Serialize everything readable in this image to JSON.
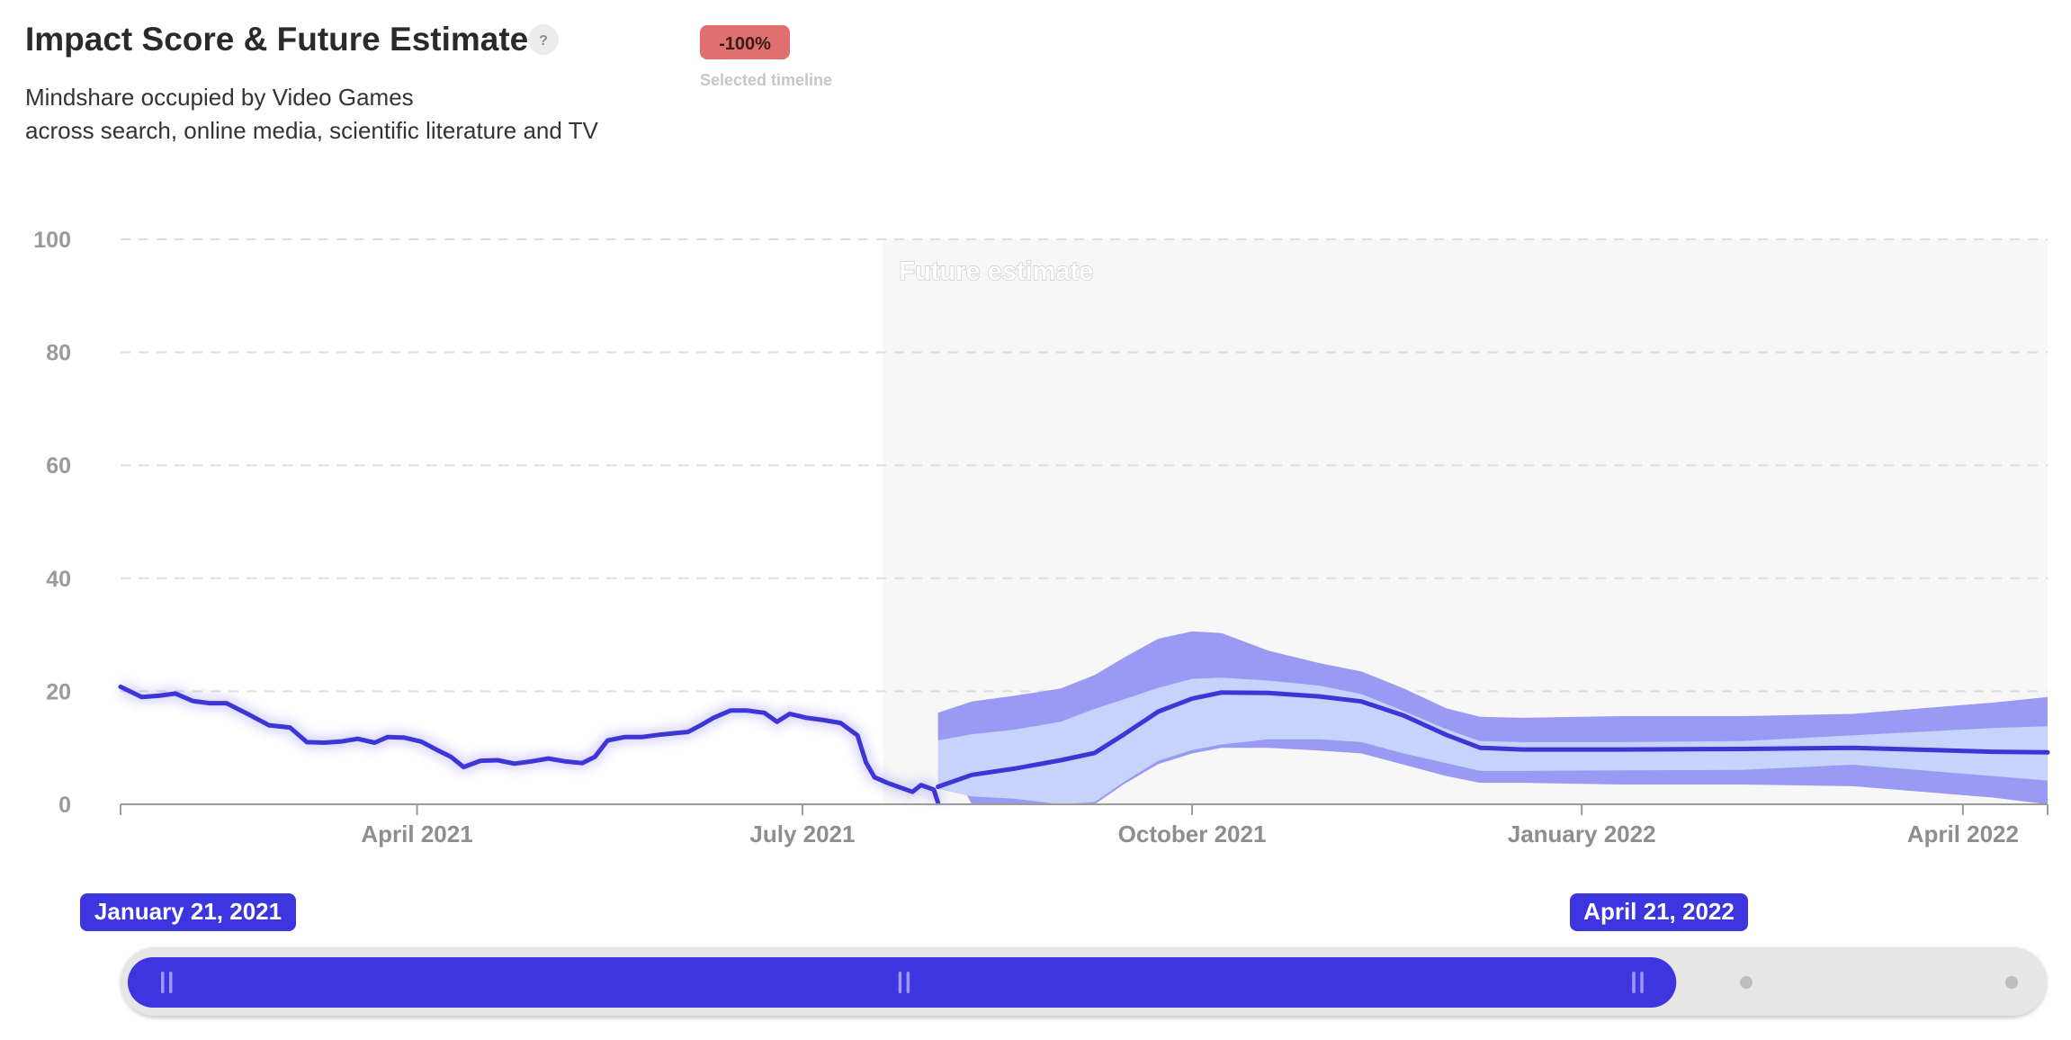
{
  "header": {
    "title": "Impact Score & Future Estimate",
    "help_icon": "?",
    "subtitle_line1": "Mindshare occupied by Video Games",
    "subtitle_line2": "across search, online media, scientific literature and TV",
    "change_badge": "-100%",
    "change_caption": "Selected timeline",
    "badge_color": "#e07070"
  },
  "colors": {
    "line": "#3d35d8",
    "band_outer": "#9a9af4",
    "band_inner": "#c6d4fb",
    "future_bg": "#f7f7f7",
    "grid": "#dddddd",
    "slider_fill": "#3d35e0",
    "slider_track": "#e6e6e6"
  },
  "chart_data": {
    "type": "line",
    "title": "Impact Score & Future Estimate",
    "ylim": [
      0,
      100
    ],
    "yticks": [
      0,
      20,
      40,
      60,
      80,
      100
    ],
    "x_start": "2021-01-21",
    "x_end": "2022-04-21",
    "xticks": [
      {
        "label": "April 2021",
        "date": "2021-04-01"
      },
      {
        "label": "July 2021",
        "date": "2021-07-01"
      },
      {
        "label": "October 2021",
        "date": "2021-10-01"
      },
      {
        "label": "January 2022",
        "date": "2022-01-01"
      },
      {
        "label": "April 2022",
        "date": "2022-04-01"
      }
    ],
    "grid": true,
    "future_start": "2021-07-20",
    "future_label": "Future estimate",
    "series": [
      {
        "kind": "history",
        "points": [
          [
            "2021-01-21",
            20.8
          ],
          [
            "2021-01-26",
            19.0
          ],
          [
            "2021-01-30",
            19.2
          ],
          [
            "2021-02-03",
            19.6
          ],
          [
            "2021-02-07",
            18.3
          ],
          [
            "2021-02-11",
            17.9
          ],
          [
            "2021-02-15",
            17.9
          ],
          [
            "2021-02-20",
            16.0
          ],
          [
            "2021-02-25",
            14.0
          ],
          [
            "2021-03-02",
            13.6
          ],
          [
            "2021-03-06",
            11.0
          ],
          [
            "2021-03-10",
            10.9
          ],
          [
            "2021-03-14",
            11.1
          ],
          [
            "2021-03-18",
            11.6
          ],
          [
            "2021-03-22",
            10.9
          ],
          [
            "2021-03-25",
            11.9
          ],
          [
            "2021-03-29",
            11.8
          ],
          [
            "2021-04-02",
            11.1
          ],
          [
            "2021-04-06",
            9.5
          ],
          [
            "2021-04-09",
            8.4
          ],
          [
            "2021-04-12",
            6.6
          ],
          [
            "2021-04-16",
            7.7
          ],
          [
            "2021-04-20",
            7.8
          ],
          [
            "2021-04-24",
            7.2
          ],
          [
            "2021-04-28",
            7.6
          ],
          [
            "2021-05-02",
            8.1
          ],
          [
            "2021-05-06",
            7.6
          ],
          [
            "2021-05-10",
            7.3
          ],
          [
            "2021-05-13",
            8.4
          ],
          [
            "2021-05-16",
            11.3
          ],
          [
            "2021-05-20",
            11.9
          ],
          [
            "2021-05-24",
            11.9
          ],
          [
            "2021-05-28",
            12.3
          ],
          [
            "2021-06-01",
            12.6
          ],
          [
            "2021-06-04",
            12.8
          ],
          [
            "2021-06-07",
            14.0
          ],
          [
            "2021-06-10",
            15.3
          ],
          [
            "2021-06-14",
            16.6
          ],
          [
            "2021-06-18",
            16.6
          ],
          [
            "2021-06-22",
            16.2
          ],
          [
            "2021-06-25",
            14.6
          ],
          [
            "2021-06-28",
            16.0
          ],
          [
            "2021-07-02",
            15.3
          ],
          [
            "2021-07-06",
            14.9
          ],
          [
            "2021-07-10",
            14.4
          ],
          [
            "2021-07-14",
            12.2
          ],
          [
            "2021-07-16",
            7.4
          ],
          [
            "2021-07-18",
            4.8
          ],
          [
            "2021-07-21",
            3.8
          ],
          [
            "2021-07-24",
            3.0
          ],
          [
            "2021-07-27",
            2.2
          ],
          [
            "2021-07-29",
            3.4
          ],
          [
            "2021-08-01",
            2.6
          ],
          [
            "2021-08-02",
            0.3
          ]
        ]
      },
      {
        "kind": "forecast",
        "points": [
          [
            "2021-08-02",
            3.1
          ],
          [
            "2021-08-10",
            5.2
          ],
          [
            "2021-08-20",
            6.3
          ],
          [
            "2021-08-31",
            7.8
          ],
          [
            "2021-09-08",
            9.1
          ],
          [
            "2021-09-15",
            12.4
          ],
          [
            "2021-09-23",
            16.4
          ],
          [
            "2021-10-01",
            18.7
          ],
          [
            "2021-10-08",
            19.8
          ],
          [
            "2021-10-19",
            19.7
          ],
          [
            "2021-10-31",
            19.1
          ],
          [
            "2021-11-10",
            18.2
          ],
          [
            "2021-11-20",
            15.7
          ],
          [
            "2021-11-30",
            12.3
          ],
          [
            "2021-12-08",
            10.0
          ],
          [
            "2021-12-18",
            9.7
          ],
          [
            "2022-01-10",
            9.7
          ],
          [
            "2022-02-08",
            9.8
          ],
          [
            "2022-03-06",
            10.0
          ],
          [
            "2022-04-08",
            9.3
          ],
          [
            "2022-04-21",
            9.2
          ]
        ]
      }
    ],
    "band_outer": [
      [
        "2021-08-02",
        16.2,
        11.4
      ],
      [
        "2021-08-10",
        18.2,
        0.0
      ],
      [
        "2021-08-20",
        19.2,
        0.0
      ],
      [
        "2021-08-31",
        20.5,
        0.0
      ],
      [
        "2021-09-08",
        22.9,
        0.0
      ],
      [
        "2021-09-15",
        26.0,
        3.6
      ],
      [
        "2021-09-23",
        29.3,
        7.1
      ],
      [
        "2021-10-01",
        30.6,
        9.0
      ],
      [
        "2021-10-08",
        30.3,
        10.0
      ],
      [
        "2021-10-19",
        27.2,
        10.0
      ],
      [
        "2021-10-31",
        25.0,
        9.5
      ],
      [
        "2021-11-10",
        23.5,
        9.0
      ],
      [
        "2021-11-20",
        20.5,
        7.0
      ],
      [
        "2021-11-30",
        17.0,
        5.0
      ],
      [
        "2021-12-08",
        15.5,
        3.8
      ],
      [
        "2021-12-18",
        15.3,
        3.8
      ],
      [
        "2022-01-10",
        15.6,
        3.5
      ],
      [
        "2022-02-08",
        15.6,
        3.5
      ],
      [
        "2022-03-06",
        16.0,
        3.2
      ],
      [
        "2022-04-08",
        18.0,
        1.2
      ],
      [
        "2022-04-21",
        19.0,
        0.0
      ]
    ],
    "band_inner": [
      [
        "2021-08-02",
        11.3,
        2.7
      ],
      [
        "2021-08-10",
        12.4,
        1.4
      ],
      [
        "2021-08-20",
        13.2,
        1.0
      ],
      [
        "2021-08-31",
        14.6,
        0.0
      ],
      [
        "2021-09-08",
        16.9,
        0.4
      ],
      [
        "2021-09-15",
        18.6,
        4.0
      ],
      [
        "2021-09-23",
        20.6,
        7.7
      ],
      [
        "2021-10-01",
        22.2,
        9.6
      ],
      [
        "2021-10-08",
        22.4,
        10.6
      ],
      [
        "2021-10-19",
        21.9,
        11.5
      ],
      [
        "2021-10-31",
        21.0,
        11.5
      ],
      [
        "2021-11-10",
        19.5,
        11.0
      ],
      [
        "2021-11-20",
        16.5,
        9.0
      ],
      [
        "2021-11-30",
        13.3,
        7.3
      ],
      [
        "2021-12-08",
        11.2,
        5.9
      ],
      [
        "2021-12-18",
        11.0,
        5.9
      ],
      [
        "2022-01-10",
        11.0,
        6.0
      ],
      [
        "2022-02-08",
        11.2,
        6.1
      ],
      [
        "2022-03-06",
        12.2,
        7.0
      ],
      [
        "2022-04-08",
        13.5,
        5.0
      ],
      [
        "2022-04-21",
        13.8,
        4.2
      ]
    ]
  },
  "slider": {
    "start_label": "January 21, 2021",
    "end_label": "April 21, 2022",
    "selected_start": 0.0,
    "selected_end": 0.81
  }
}
